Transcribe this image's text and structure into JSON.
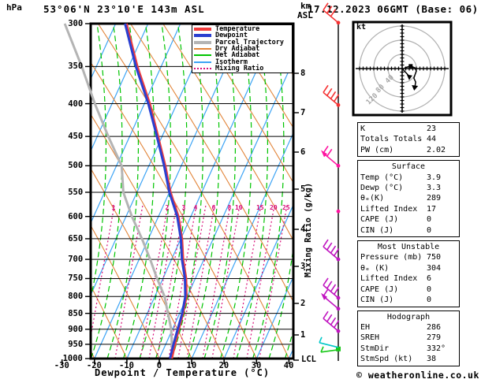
{
  "header": {
    "pressure_unit": "hPa",
    "station": "53°06'N 23°10'E 143m ASL",
    "altitude_unit_top": "km",
    "altitude_unit_bottom": "ASL",
    "datetime": "17.12.2023 06GMT (Base: 06)"
  },
  "legend": {
    "items": [
      {
        "label": "Temperature",
        "color": "#f23c3c",
        "thick": true,
        "dotted": false
      },
      {
        "label": "Dewpoint",
        "color": "#2a3fd0",
        "thick": true,
        "dotted": false
      },
      {
        "label": "Parcel Trajectory",
        "color": "#b4b4b4",
        "thick": true,
        "dotted": false
      },
      {
        "label": "Dry Adiabat",
        "color": "#e2853a",
        "thick": false,
        "dotted": false
      },
      {
        "label": "Wet Adiabat",
        "color": "#00c400",
        "thick": false,
        "dotted": false
      },
      {
        "label": "Isotherm",
        "color": "#3da4f5",
        "thick": false,
        "dotted": false
      },
      {
        "label": "Mixing Ratio",
        "color": "#d80d78",
        "thick": false,
        "dotted": true
      }
    ]
  },
  "axes": {
    "pressure_ticks": [
      300,
      350,
      400,
      450,
      500,
      550,
      600,
      650,
      700,
      750,
      800,
      850,
      900,
      950,
      1000
    ],
    "temp_ticks": [
      -30,
      -20,
      -10,
      0,
      10,
      20,
      30,
      40
    ],
    "xlabel": "Dewpoint / Temperature (°C)",
    "km_ticks": [
      8,
      7,
      6,
      5,
      4,
      3,
      2,
      1
    ],
    "lcl_label": "LCL",
    "mixing_axis_label": "Mixing Ratio (g/kg)",
    "mixing_ratio_values": [
      1,
      2,
      3,
      4,
      6,
      8,
      10,
      15,
      20,
      25
    ]
  },
  "hodograph": {
    "unit_label": "kt",
    "ring_labels": [
      "40",
      "80",
      "120"
    ]
  },
  "table": {
    "indices": {
      "rows": [
        {
          "label": "K",
          "value": "23"
        },
        {
          "label": "Totals Totals",
          "value": "44"
        },
        {
          "label": "PW (cm)",
          "value": "2.02"
        }
      ]
    },
    "surface": {
      "title": "Surface",
      "rows": [
        {
          "label": "Temp (°C)",
          "value": "3.9"
        },
        {
          "label": "Dewp (°C)",
          "value": "3.3"
        },
        {
          "label": "θₑ(K)",
          "value": "289"
        },
        {
          "label": "Lifted Index",
          "value": "17"
        },
        {
          "label": "CAPE (J)",
          "value": "0"
        },
        {
          "label": "CIN (J)",
          "value": "0"
        }
      ]
    },
    "most_unstable": {
      "title": "Most Unstable",
      "rows": [
        {
          "label": "Pressure (mb)",
          "value": "750"
        },
        {
          "label": "θₑ (K)",
          "value": "304"
        },
        {
          "label": "Lifted Index",
          "value": "6"
        },
        {
          "label": "CAPE (J)",
          "value": "0"
        },
        {
          "label": "CIN (J)",
          "value": "0"
        }
      ]
    },
    "hodograph_section": {
      "title": "Hodograph",
      "rows": [
        {
          "label": "EH",
          "value": "286"
        },
        {
          "label": "SREH",
          "value": "279"
        },
        {
          "label": "StmDir",
          "value": "332°"
        },
        {
          "label": "StmSpd (kt)",
          "value": "38"
        }
      ]
    }
  },
  "footer": {
    "copyright": "© weatheronline.co.uk"
  },
  "colors": {
    "temperature": "#f23c3c",
    "dewpoint": "#2a3fd0",
    "parcel": "#b4b4b4",
    "dry_adiabat": "#e2853a",
    "wet_adiabat": "#00c400",
    "isotherm": "#3da4f5",
    "mixing_ratio": "#d80d78",
    "grid": "#000000",
    "barb_red": "#f53030",
    "barb_pink": "#ff12a0",
    "barb_purple": "#c014c0",
    "barb_green": "#18c818",
    "barb_cyan": "#00c8c8",
    "hodo_ring": "#b0b0b0"
  },
  "chart_data": {
    "type": "line",
    "subtype": "skewt_log_p_sounding",
    "title": "53°06'N 23°10'E 143m ASL",
    "xlabel": "Dewpoint / Temperature (°C)",
    "ylabel": "hPa",
    "x_range_c": [
      -40,
      40
    ],
    "pressure_range_hpa": [
      300,
      1000
    ],
    "pressure_hpa": [
      1000,
      950,
      900,
      850,
      800,
      750,
      700,
      650,
      600,
      550,
      500,
      450,
      400,
      350,
      300
    ],
    "series": [
      {
        "name": "Temperature",
        "values_c": [
          3.9,
          2.9,
          2.0,
          1.1,
          -0.2,
          -2.8,
          -6.4,
          -9.6,
          -13.8,
          -19.6,
          -24.9,
          -31.2,
          -38.3,
          -47.3,
          -56.6
        ]
      },
      {
        "name": "Dewpoint",
        "values_c": [
          3.3,
          2.4,
          1.6,
          0.8,
          -0.6,
          -3.2,
          -6.8,
          -10.0,
          -14.2,
          -20.0,
          -25.3,
          -31.6,
          -38.8,
          -47.8,
          -57.1
        ]
      },
      {
        "name": "Parcel Trajectory",
        "values_c": [
          3.9,
          1.9,
          -0.4,
          -3.6,
          -7.0,
          -11.8,
          -16.6,
          -22.0,
          -28.2,
          -34.2,
          -38.4,
          -46.6,
          -55.3,
          -64.5,
          -75.7
        ]
      }
    ],
    "mixing_ratio_lines_gkg": [
      1,
      2,
      3,
      4,
      6,
      8,
      10,
      15,
      20,
      25
    ],
    "wind_barbs": [
      {
        "pressure": 299,
        "color": "barb_red",
        "ticks": 3,
        "arrow": false,
        "dot_only": false,
        "surface": false
      },
      {
        "pressure": 402,
        "color": "barb_red",
        "ticks": 4,
        "arrow": false,
        "dot_only": false,
        "surface": false
      },
      {
        "pressure": 500,
        "color": "barb_pink",
        "ticks": 2,
        "arrow": true,
        "dot_only": false,
        "surface": false
      },
      {
        "pressure": 589,
        "color": "barb_pink",
        "ticks": 0,
        "arrow": false,
        "dot_only": true,
        "surface": false
      },
      {
        "pressure": 700,
        "color": "barb_purple",
        "ticks": 4,
        "arrow": false,
        "dot_only": false,
        "surface": false
      },
      {
        "pressure": 804,
        "color": "barb_purple",
        "ticks": 4,
        "arrow": false,
        "dot_only": false,
        "surface": false
      },
      {
        "pressure": 836,
        "color": "barb_purple",
        "ticks": 1,
        "arrow": true,
        "dot_only": false,
        "surface": false
      },
      {
        "pressure": 906,
        "color": "barb_purple",
        "ticks": 4,
        "arrow": false,
        "dot_only": false,
        "surface": false
      },
      {
        "pressure": 966,
        "color": "barb_green",
        "ticks": 2,
        "arrow": false,
        "dot_only": false,
        "surface": true
      }
    ],
    "hodograph": {
      "rings_kt": [
        40,
        80,
        120
      ],
      "trace_kt": [
        [
          7,
          -2
        ],
        [
          24,
          -7
        ],
        [
          36,
          -2
        ],
        [
          40,
          7
        ],
        [
          36,
          18
        ],
        [
          33,
          27
        ],
        [
          38,
          38
        ],
        [
          36,
          51
        ]
      ],
      "storm_motion_kt": [
        22,
        24
      ],
      "storm_dir_deg": 332,
      "storm_speed_kt": 38
    },
    "indices": {
      "K": 23,
      "TotalsTotals": 44,
      "PW_cm": 2.02,
      "surface": {
        "temp_c": 3.9,
        "dewp_c": 3.3,
        "theta_e_k": 289,
        "lifted_index": 17,
        "cape_j": 0,
        "cin_j": 0
      },
      "most_unstable": {
        "pressure_mb": 750,
        "theta_e_k": 304,
        "lifted_index": 6,
        "cape_j": 0,
        "cin_j": 0
      },
      "hodograph": {
        "EH": 286,
        "SREH": 279,
        "StmDir_deg": 332,
        "StmSpd_kt": 38
      }
    }
  }
}
